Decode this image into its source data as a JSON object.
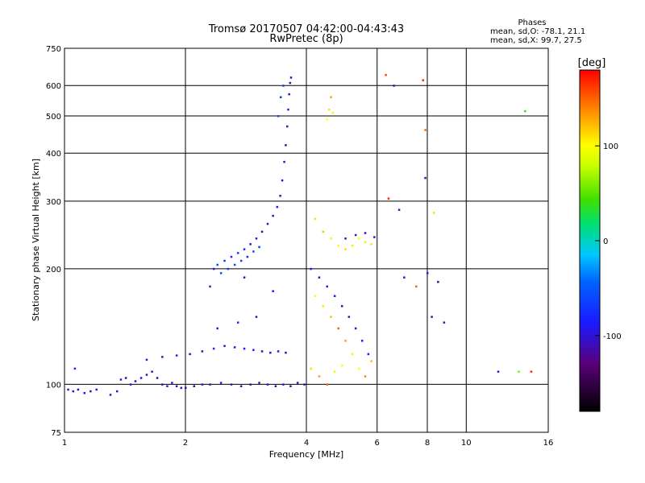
{
  "figure": {
    "title_line1": "Tromsø 20170507 04:42:00-04:43:43",
    "title_line2": "RwPretec (8p)"
  },
  "stats": {
    "heading": "Phases",
    "line_o": "mean, sd,O: -78.1, 21.1",
    "line_x": "mean, sd,X:  99.7, 27.5"
  },
  "colorbar": {
    "label": "[deg]",
    "range": [
      -180,
      180
    ],
    "ticks": [
      {
        "value": 100,
        "label": "100"
      },
      {
        "value": 0,
        "label": "0"
      },
      {
        "value": -100,
        "label": "-100"
      }
    ]
  },
  "chart_data": {
    "type": "scatter",
    "title": "Tromsø 20170507 04:42:00-04:43:43",
    "subtitle": "RwPretec (8p)",
    "xlabel": "Frequency [MHz]",
    "ylabel": "Stationary phase Virtual Height [km]",
    "x_scale": "log",
    "y_scale": "log",
    "xlim": [
      1,
      16
    ],
    "ylim": [
      75,
      750
    ],
    "x_ticks": [
      1,
      2,
      4,
      6,
      8,
      10,
      16
    ],
    "x_tick_labels": [
      "1",
      "2",
      "4",
      "6",
      "8",
      "10",
      "16"
    ],
    "y_ticks": [
      75,
      100,
      200,
      300,
      400,
      500,
      600,
      750
    ],
    "y_tick_labels": [
      "75",
      "100",
      "200",
      "300",
      "400",
      "500",
      "600",
      "750"
    ],
    "grid": true,
    "colorbar_label": "[deg]",
    "color_value": "phase",
    "series": [
      {
        "points": [
          [
            1.02,
            97,
            -110
          ],
          [
            1.05,
            96,
            -100
          ],
          [
            1.08,
            97,
            -120
          ],
          [
            1.12,
            95,
            -90
          ],
          [
            1.16,
            96,
            -110
          ],
          [
            1.2,
            97,
            -100
          ],
          [
            1.06,
            110,
            -80
          ],
          [
            1.3,
            94,
            -110
          ],
          [
            1.35,
            96,
            -100
          ],
          [
            1.38,
            103,
            -90
          ],
          [
            1.42,
            104,
            -120
          ],
          [
            1.46,
            100,
            -95
          ],
          [
            1.5,
            102,
            -110
          ],
          [
            1.55,
            104,
            -100
          ],
          [
            1.6,
            106,
            -110
          ],
          [
            1.65,
            108,
            -100
          ],
          [
            1.7,
            104,
            -120
          ],
          [
            1.75,
            100,
            -110
          ],
          [
            1.8,
            99,
            -100
          ],
          [
            1.85,
            101,
            -90
          ],
          [
            1.9,
            99,
            -110
          ],
          [
            1.95,
            98,
            -100
          ],
          [
            2.0,
            98,
            -110
          ],
          [
            2.1,
            99,
            -120
          ],
          [
            2.2,
            100,
            -100
          ],
          [
            2.3,
            100,
            -110
          ],
          [
            2.45,
            101,
            -90
          ],
          [
            2.6,
            100,
            -110
          ],
          [
            2.75,
            99,
            -100
          ],
          [
            2.9,
            100,
            -120
          ],
          [
            3.05,
            101,
            -110
          ],
          [
            3.2,
            100,
            -100
          ],
          [
            3.35,
            99,
            -110
          ],
          [
            3.5,
            100,
            -90
          ],
          [
            3.65,
            99,
            -110
          ],
          [
            3.8,
            101,
            -100
          ],
          [
            3.95,
            100,
            -110
          ],
          [
            1.6,
            116,
            -100
          ],
          [
            1.75,
            118,
            -110
          ],
          [
            1.9,
            119,
            -90
          ],
          [
            2.05,
            120,
            -100
          ],
          [
            2.2,
            122,
            -110
          ],
          [
            2.35,
            124,
            -80
          ],
          [
            2.5,
            126,
            -100
          ],
          [
            2.65,
            125,
            -110
          ],
          [
            2.8,
            124,
            -90
          ],
          [
            2.95,
            123,
            -100
          ],
          [
            3.1,
            122,
            -120
          ],
          [
            3.25,
            121,
            -100
          ],
          [
            3.4,
            122,
            -90
          ],
          [
            3.55,
            121,
            -110
          ],
          [
            2.4,
            140,
            -100
          ],
          [
            2.7,
            145,
            -80
          ],
          [
            3.0,
            150,
            -110
          ],
          [
            2.3,
            180,
            -100
          ],
          [
            2.8,
            190,
            -120
          ],
          [
            3.3,
            175,
            -90
          ],
          [
            2.35,
            200,
            -100
          ],
          [
            2.4,
            205,
            -60
          ],
          [
            2.5,
            210,
            -70
          ],
          [
            2.6,
            215,
            -80
          ],
          [
            2.7,
            220,
            -70
          ],
          [
            2.8,
            225,
            -80
          ],
          [
            2.9,
            232,
            -100
          ],
          [
            3.0,
            240,
            -90
          ],
          [
            3.1,
            250,
            -110
          ],
          [
            3.2,
            262,
            -100
          ],
          [
            3.3,
            275,
            -110
          ],
          [
            3.38,
            290,
            -90
          ],
          [
            3.44,
            310,
            -110
          ],
          [
            3.48,
            340,
            -100
          ],
          [
            3.52,
            380,
            -90
          ],
          [
            3.55,
            420,
            -110
          ],
          [
            3.58,
            470,
            -100
          ],
          [
            3.6,
            520,
            -80
          ],
          [
            3.62,
            570,
            -100
          ],
          [
            3.64,
            610,
            -110
          ],
          [
            3.66,
            630,
            -100
          ],
          [
            2.45,
            195,
            -60
          ],
          [
            2.55,
            200,
            -70
          ],
          [
            2.65,
            205,
            -65
          ],
          [
            2.75,
            210,
            -70
          ],
          [
            2.85,
            215,
            -80
          ],
          [
            2.95,
            222,
            -60
          ],
          [
            3.05,
            228,
            -70
          ],
          [
            3.4,
            500,
            -60
          ],
          [
            3.45,
            560,
            -70
          ],
          [
            3.5,
            600,
            -65
          ],
          [
            4.5,
            490,
            100
          ],
          [
            4.55,
            520,
            110
          ],
          [
            4.6,
            560,
            130
          ],
          [
            4.65,
            510,
            90
          ],
          [
            4.2,
            270,
            110
          ],
          [
            4.4,
            250,
            120
          ],
          [
            4.6,
            240,
            90
          ],
          [
            4.8,
            230,
            100
          ],
          [
            5.0,
            225,
            110
          ],
          [
            5.2,
            230,
            80
          ],
          [
            5.4,
            240,
            100
          ],
          [
            5.6,
            235,
            90
          ],
          [
            5.8,
            232,
            110
          ],
          [
            5.0,
            240,
            -110
          ],
          [
            5.3,
            245,
            -100
          ],
          [
            5.6,
            248,
            -110
          ],
          [
            5.9,
            242,
            -100
          ],
          [
            4.1,
            200,
            -100
          ],
          [
            4.3,
            190,
            -110
          ],
          [
            4.5,
            180,
            -100
          ],
          [
            4.7,
            170,
            -90
          ],
          [
            4.9,
            160,
            -110
          ],
          [
            5.1,
            150,
            -100
          ],
          [
            5.3,
            140,
            -110
          ],
          [
            5.5,
            130,
            -100
          ],
          [
            5.7,
            120,
            -90
          ],
          [
            4.2,
            170,
            100
          ],
          [
            4.4,
            160,
            110
          ],
          [
            4.6,
            150,
            120
          ],
          [
            4.8,
            140,
            150
          ],
          [
            5.0,
            130,
            130
          ],
          [
            5.2,
            120,
            90
          ],
          [
            5.4,
            110,
            100
          ],
          [
            5.6,
            105,
            140
          ],
          [
            5.8,
            115,
            120
          ],
          [
            4.1,
            110,
            110
          ],
          [
            4.3,
            105,
            130
          ],
          [
            4.5,
            100,
            150
          ],
          [
            4.7,
            108,
            90
          ],
          [
            4.9,
            112,
            100
          ],
          [
            6.3,
            640,
            160
          ],
          [
            6.6,
            600,
            -110
          ],
          [
            7.8,
            620,
            170
          ],
          [
            7.9,
            460,
            150
          ],
          [
            7.9,
            345,
            -110
          ],
          [
            6.4,
            305,
            170
          ],
          [
            6.8,
            285,
            -100
          ],
          [
            8.3,
            280,
            110
          ],
          [
            7.0,
            190,
            -100
          ],
          [
            7.5,
            180,
            150
          ],
          [
            8.0,
            195,
            -90
          ],
          [
            8.5,
            185,
            -110
          ],
          [
            12.0,
            108,
            -100
          ],
          [
            14.5,
            108,
            170
          ],
          [
            14.0,
            515,
            40
          ],
          [
            13.5,
            108,
            60
          ],
          [
            8.2,
            150,
            -110
          ],
          [
            8.8,
            145,
            -100
          ]
        ]
      }
    ]
  }
}
